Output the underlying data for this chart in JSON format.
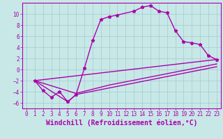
{
  "xlabel": "Windchill (Refroidissement éolien,°C)",
  "background_color": "#c8e8e8",
  "grid_color": "#a8cece",
  "line_color": "#aa00aa",
  "xlim": [
    -0.5,
    23.5
  ],
  "ylim": [
    -7,
    12
  ],
  "xticks": [
    0,
    1,
    2,
    3,
    4,
    5,
    6,
    7,
    8,
    9,
    10,
    11,
    12,
    13,
    14,
    15,
    16,
    17,
    18,
    19,
    20,
    21,
    22,
    23
  ],
  "yticks": [
    -6,
    -4,
    -2,
    0,
    2,
    4,
    6,
    8,
    10
  ],
  "main_curve": [
    [
      1,
      -2
    ],
    [
      2,
      -3.8
    ],
    [
      3,
      -5.0
    ],
    [
      4,
      -4.0
    ],
    [
      5,
      -5.8
    ],
    [
      6,
      -4.5
    ],
    [
      7,
      0.2
    ],
    [
      8,
      5.2
    ],
    [
      9,
      9.0
    ],
    [
      10,
      9.5
    ],
    [
      11,
      9.8
    ],
    [
      13,
      10.5
    ],
    [
      14,
      11.2
    ],
    [
      15,
      11.5
    ],
    [
      16,
      10.5
    ],
    [
      17,
      10.2
    ],
    [
      18,
      7.0
    ],
    [
      19,
      5.0
    ],
    [
      20,
      4.8
    ],
    [
      21,
      4.5
    ],
    [
      22,
      2.5
    ],
    [
      23,
      1.8
    ]
  ],
  "line2": [
    [
      1,
      -2
    ],
    [
      23,
      1.8
    ]
  ],
  "line3": [
    [
      1,
      -2
    ],
    [
      6,
      -4.3
    ],
    [
      10,
      -2.8
    ],
    [
      23,
      1.0
    ]
  ],
  "line4": [
    [
      1,
      -2
    ],
    [
      5,
      -5.8
    ],
    [
      6,
      -4.5
    ],
    [
      23,
      0.5
    ]
  ],
  "tick_fontsize": 5.5,
  "label_fontsize": 7.0,
  "line_width": 1.0,
  "marker_size": 3.5
}
